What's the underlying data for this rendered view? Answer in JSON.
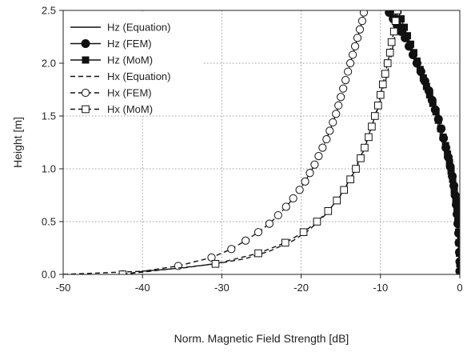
{
  "chart_data": {
    "type": "line",
    "xlabel": "Norm. Magnetic Field Strength [dB]",
    "ylabel": "Height [m]",
    "xlim": [
      -50,
      0
    ],
    "ylim": [
      0,
      2.5
    ],
    "xticks": [
      "-50",
      "-40",
      "-30",
      "-20",
      "-10",
      "0"
    ],
    "yticks": [
      "0.0",
      "0.5",
      "1.0",
      "1.5",
      "2.0",
      "2.5"
    ],
    "grid": true,
    "legend_position": "top-left",
    "series": [
      {
        "name": "Hz (Equation)",
        "style": "solid",
        "marker": "none",
        "points": [
          [
            -8.4,
            2.5
          ],
          [
            -7.6,
            2.4
          ],
          [
            -6.6,
            2.25
          ],
          [
            -5.5,
            2.05
          ],
          [
            -4.2,
            1.8
          ],
          [
            -3.0,
            1.5
          ],
          [
            -2.0,
            1.2
          ],
          [
            -1.2,
            0.9
          ],
          [
            -0.6,
            0.6
          ],
          [
            -0.2,
            0.3
          ],
          [
            0,
            0
          ]
        ]
      },
      {
        "name": "Hz (FEM)",
        "style": "solid",
        "marker": "filled-circle",
        "points": [
          [
            -8.9,
            2.48
          ],
          [
            -8.4,
            2.42
          ],
          [
            -7.9,
            2.36
          ],
          [
            -7.4,
            2.3
          ],
          [
            -6.9,
            2.24
          ],
          [
            -6.4,
            2.16
          ],
          [
            -5.9,
            2.08
          ],
          [
            -5.4,
            2.0
          ],
          [
            -4.9,
            1.92
          ],
          [
            -4.4,
            1.83
          ],
          [
            -3.9,
            1.74
          ],
          [
            -3.5,
            1.65
          ],
          [
            -3.1,
            1.56
          ],
          [
            -2.7,
            1.47
          ],
          [
            -2.35,
            1.38
          ],
          [
            -2.05,
            1.29
          ],
          [
            -1.75,
            1.2
          ],
          [
            -1.45,
            1.11
          ],
          [
            -1.2,
            1.02
          ],
          [
            -0.95,
            0.93
          ],
          [
            -0.75,
            0.84
          ],
          [
            -0.6,
            0.75
          ],
          [
            -0.45,
            0.66
          ],
          [
            -0.35,
            0.57
          ],
          [
            -0.25,
            0.48
          ],
          [
            -0.15,
            0.39
          ],
          [
            -0.1,
            0.3
          ],
          [
            -0.05,
            0.21
          ],
          [
            0,
            0.12
          ],
          [
            0,
            0.03
          ]
        ]
      },
      {
        "name": "Hz (MoM)",
        "style": "solid",
        "marker": "filled-square",
        "points": [
          [
            -7.8,
            2.5
          ],
          [
            -7.4,
            2.42
          ],
          [
            -7.0,
            2.34
          ],
          [
            -6.6,
            2.26
          ],
          [
            -6.2,
            2.18
          ],
          [
            -5.8,
            2.1
          ],
          [
            -5.4,
            2.02
          ],
          [
            -5.0,
            1.94
          ],
          [
            -4.6,
            1.86
          ],
          [
            -4.2,
            1.78
          ],
          [
            -3.8,
            1.7
          ],
          [
            -3.4,
            1.62
          ],
          [
            -3.0,
            1.54
          ],
          [
            -2.7,
            1.46
          ],
          [
            -2.4,
            1.38
          ],
          [
            -2.1,
            1.3
          ],
          [
            -1.8,
            1.22
          ],
          [
            -1.55,
            1.14
          ],
          [
            -1.3,
            1.06
          ],
          [
            -1.1,
            0.98
          ],
          [
            -0.9,
            0.9
          ],
          [
            -0.7,
            0.8
          ],
          [
            -0.5,
            0.7
          ],
          [
            -0.35,
            0.6
          ],
          [
            -0.25,
            0.5
          ],
          [
            -0.15,
            0.4
          ],
          [
            -0.1,
            0.3
          ],
          [
            -0.05,
            0.2
          ],
          [
            0,
            0.1
          ]
        ]
      },
      {
        "name": "Hx (Equation)",
        "style": "dashed",
        "marker": "none",
        "points": [
          [
            -50,
            0.0
          ],
          [
            -40,
            0.03
          ],
          [
            -35,
            0.06
          ],
          [
            -30,
            0.11
          ],
          [
            -27,
            0.15
          ],
          [
            -24,
            0.22
          ],
          [
            -21,
            0.32
          ],
          [
            -19,
            0.42
          ],
          [
            -17,
            0.56
          ],
          [
            -15,
            0.75
          ],
          [
            -13.5,
            0.95
          ],
          [
            -12.3,
            1.15
          ],
          [
            -11.2,
            1.38
          ],
          [
            -10.2,
            1.6
          ],
          [
            -9.4,
            1.82
          ],
          [
            -8.7,
            2.05
          ],
          [
            -8.2,
            2.25
          ],
          [
            -7.8,
            2.5
          ]
        ]
      },
      {
        "name": "Hx (FEM)",
        "style": "dashed",
        "marker": "open-circle",
        "points": [
          [
            -42.5,
            0.0
          ],
          [
            -35.5,
            0.08
          ],
          [
            -31.3,
            0.16
          ],
          [
            -28.8,
            0.24
          ],
          [
            -27.0,
            0.32
          ],
          [
            -25.4,
            0.4
          ],
          [
            -24.0,
            0.48
          ],
          [
            -22.9,
            0.56
          ],
          [
            -21.9,
            0.64
          ],
          [
            -21.0,
            0.72
          ],
          [
            -20.2,
            0.8
          ],
          [
            -19.5,
            0.88
          ],
          [
            -18.9,
            0.96
          ],
          [
            -18.3,
            1.04
          ],
          [
            -17.8,
            1.12
          ],
          [
            -17.3,
            1.2
          ],
          [
            -16.8,
            1.28
          ],
          [
            -16.4,
            1.36
          ],
          [
            -16.0,
            1.44
          ],
          [
            -15.6,
            1.52
          ],
          [
            -15.3,
            1.6
          ],
          [
            -15.0,
            1.68
          ],
          [
            -14.7,
            1.76
          ],
          [
            -14.4,
            1.84
          ],
          [
            -14.1,
            1.92
          ],
          [
            -13.8,
            2.0
          ],
          [
            -13.5,
            2.08
          ],
          [
            -13.2,
            2.16
          ],
          [
            -12.9,
            2.24
          ],
          [
            -12.6,
            2.32
          ],
          [
            -12.3,
            2.4
          ],
          [
            -12.1,
            2.48
          ]
        ]
      },
      {
        "name": "Hx (MoM)",
        "style": "dashed",
        "marker": "open-square",
        "points": [
          [
            -42.5,
            0.0
          ],
          [
            -30.8,
            0.1
          ],
          [
            -25.4,
            0.2
          ],
          [
            -22.0,
            0.3
          ],
          [
            -19.7,
            0.4
          ],
          [
            -18.0,
            0.5
          ],
          [
            -16.6,
            0.6
          ],
          [
            -15.5,
            0.7
          ],
          [
            -14.6,
            0.8
          ],
          [
            -13.8,
            0.9
          ],
          [
            -13.1,
            1.0
          ],
          [
            -12.5,
            1.1
          ],
          [
            -12.0,
            1.2
          ],
          [
            -11.5,
            1.3
          ],
          [
            -11.1,
            1.4
          ],
          [
            -10.7,
            1.5
          ],
          [
            -10.3,
            1.6
          ],
          [
            -10.0,
            1.7
          ],
          [
            -9.7,
            1.8
          ],
          [
            -9.4,
            1.9
          ],
          [
            -9.1,
            2.0
          ],
          [
            -8.8,
            2.1
          ],
          [
            -8.6,
            2.2
          ],
          [
            -8.3,
            2.3
          ],
          [
            -8.1,
            2.4
          ],
          [
            -7.9,
            2.5
          ]
        ]
      }
    ]
  }
}
